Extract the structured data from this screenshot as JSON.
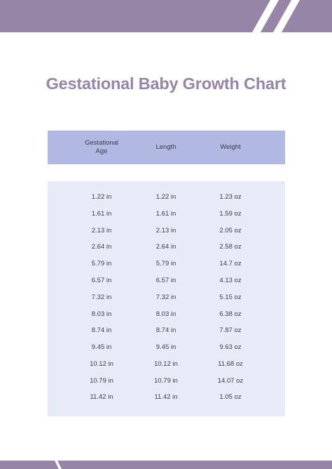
{
  "document": {
    "title": "Gestational Baby Growth Chart"
  },
  "table": {
    "headers": [
      "Gestational Age",
      "Length",
      "Weight"
    ],
    "rows": [
      [
        "1.22 in",
        "1.22 in",
        "1.23 oz"
      ],
      [
        "1.61 in",
        "1.61 in",
        "1.59 oz"
      ],
      [
        "2.13 in",
        "2.13 in",
        "2.05 oz"
      ],
      [
        "2.64 in",
        "2.64 in",
        "2.58 oz"
      ],
      [
        "5.79 in",
        "5.79 in",
        "14.7 oz"
      ],
      [
        "6.57 in",
        "6.57 in",
        "4.13 oz"
      ],
      [
        "7.32 in",
        "7.32 in",
        "5.15 oz"
      ],
      [
        "8.03 in",
        "8.03 in",
        "6.38 oz"
      ],
      [
        "8.74 in",
        "8.74 in",
        "7.87 oz"
      ],
      [
        "9.45 in",
        "9.45 in",
        "9.63 oz"
      ],
      [
        "10.12 in",
        "10.12 in",
        "11.68 oz"
      ],
      [
        "10.79 in",
        "10.79 in",
        "14.07 oz"
      ],
      [
        "11.42 in",
        "11.42 in",
        "1.05 oz"
      ]
    ]
  },
  "colors": {
    "band": "#9685a6",
    "title": "#9685a6",
    "header_fill": "#b1b9e3",
    "body_fill": "#e7ebf7",
    "text": "#3d3d4a"
  }
}
